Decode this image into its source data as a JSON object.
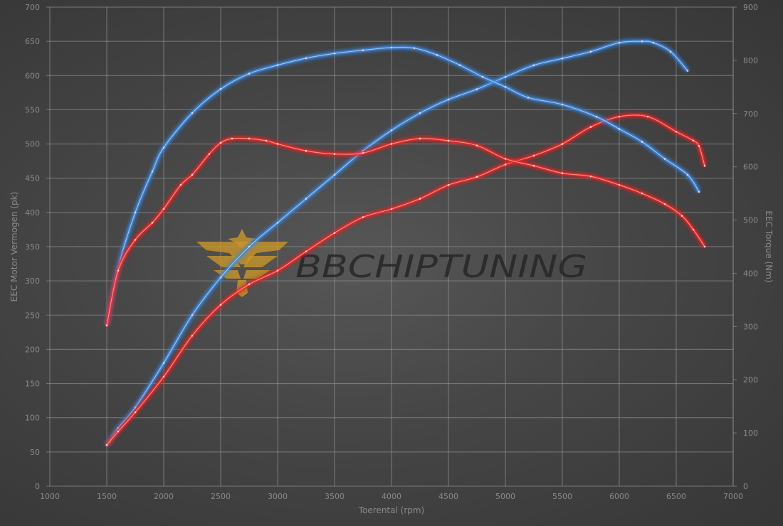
{
  "chart_data": {
    "type": "line",
    "xlabel": "Toerental (rpm)",
    "ylabel_left": "EEC Motor Vermogen (pk)",
    "ylabel_right": "EEC Torque (Nm)",
    "xlim": [
      1000,
      7000
    ],
    "ylim_left": [
      0,
      700
    ],
    "ylim_right": [
      0,
      900
    ],
    "x_ticks": [
      1000,
      1500,
      2000,
      2500,
      3000,
      3500,
      4000,
      4500,
      5000,
      5500,
      6000,
      6500,
      7000
    ],
    "y_left_ticks": [
      0,
      50,
      100,
      150,
      200,
      250,
      300,
      350,
      400,
      450,
      500,
      550,
      600,
      650,
      700
    ],
    "y_right_ticks": [
      0,
      100,
      200,
      300,
      400,
      500,
      600,
      700,
      800,
      900
    ],
    "grid": true,
    "legend": "none",
    "series": [
      {
        "axis": "left",
        "color": "#3d86e0",
        "x": [
          1500,
          1600,
          1750,
          2000,
          2250,
          2500,
          2750,
          3000,
          3250,
          3500,
          3750,
          4000,
          4250,
          4500,
          4750,
          5000,
          5250,
          5500,
          5750,
          6000,
          6200,
          6300,
          6450,
          6600
        ],
        "y": [
          60,
          85,
          115,
          180,
          250,
          305,
          350,
          385,
          420,
          455,
          490,
          520,
          545,
          565,
          580,
          598,
          615,
          625,
          635,
          648,
          650,
          648,
          635,
          607
        ]
      },
      {
        "axis": "left",
        "color": "#e8282a",
        "x": [
          1500,
          1600,
          1750,
          2000,
          2250,
          2500,
          2750,
          3000,
          3250,
          3500,
          3750,
          4000,
          4250,
          4500,
          4750,
          5000,
          5250,
          5500,
          5750,
          6000,
          6250,
          6500,
          6650,
          6700,
          6750
        ],
        "y": [
          60,
          80,
          108,
          160,
          220,
          265,
          295,
          315,
          343,
          370,
          393,
          405,
          420,
          440,
          452,
          470,
          483,
          500,
          525,
          540,
          540,
          518,
          505,
          497,
          468
        ]
      },
      {
        "axis": "right",
        "color": "#3d86e0",
        "x": [
          1500,
          1600,
          1750,
          1900,
          2000,
          2250,
          2500,
          2750,
          3000,
          3250,
          3500,
          3750,
          4000,
          4200,
          4400,
          4600,
          4800,
          5000,
          5200,
          5500,
          5800,
          6000,
          6200,
          6400,
          6600,
          6700
        ],
        "y": [
          302,
          411,
          514,
          591,
          636,
          701,
          746,
          775,
          791,
          804,
          813,
          819,
          824,
          823,
          810,
          791,
          769,
          750,
          730,
          717,
          694,
          671,
          647,
          615,
          585,
          553
        ]
      },
      {
        "axis": "right",
        "color": "#e8282a",
        "x": [
          1500,
          1600,
          1750,
          1900,
          2000,
          2150,
          2250,
          2400,
          2500,
          2600,
          2750,
          2900,
          3000,
          3250,
          3500,
          3750,
          4000,
          4250,
          4500,
          4750,
          5000,
          5250,
          5500,
          5750,
          6000,
          6200,
          6400,
          6550,
          6650,
          6750
        ],
        "y": [
          302,
          405,
          463,
          495,
          521,
          566,
          585,
          624,
          645,
          653,
          653,
          649,
          643,
          630,
          624,
          626,
          643,
          653,
          649,
          640,
          615,
          602,
          588,
          582,
          566,
          550,
          530,
          508,
          482,
          450
        ]
      }
    ],
    "watermark": "BBCHIPTUNING"
  }
}
